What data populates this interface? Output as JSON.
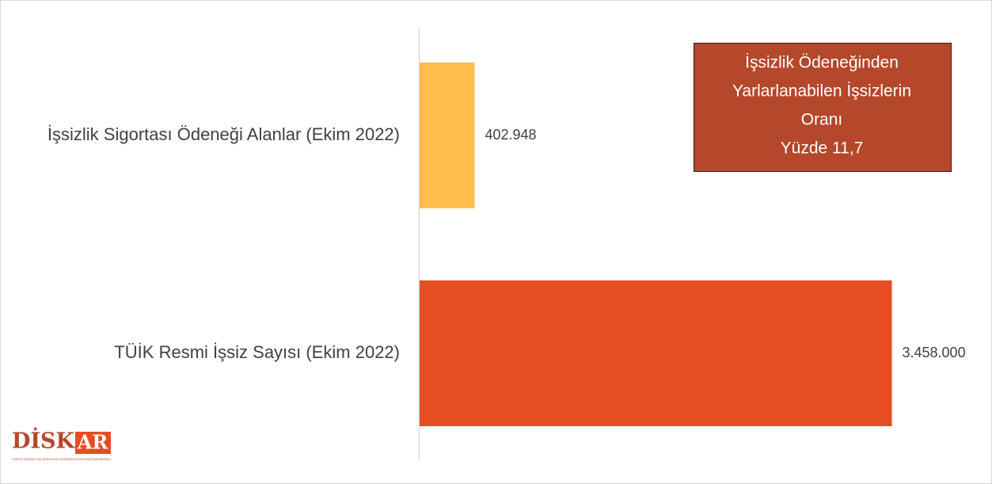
{
  "chart_data": {
    "type": "hbar",
    "categories": [
      "İşsizlik Sigortası Ödeneği Alanlar (Ekim 2022)",
      "TÜİK Resmi İşsiz Sayısı (Ekim 2022)"
    ],
    "values": [
      402948,
      3458000
    ],
    "value_labels": [
      "402.948",
      "3.458.000"
    ],
    "colors": [
      "#FFBD4A",
      "#E64D22"
    ],
    "xlim": [
      0,
      4000000
    ],
    "annotation": [
      "İşsizlik Ödeneğinden",
      "Yarlarlanabilen İşsizlerin",
      "Oranı",
      "Yüzde 11,7"
    ],
    "annotation_color": "#B5472A",
    "logo": [
      "DİSK",
      "AR"
    ],
    "logo_caption": "TÜRKİYE DEVRİMCİ İŞÇİ SENDİKALARI KONFEDERASYONU ARAŞTIRMA MERKEZİ"
  }
}
